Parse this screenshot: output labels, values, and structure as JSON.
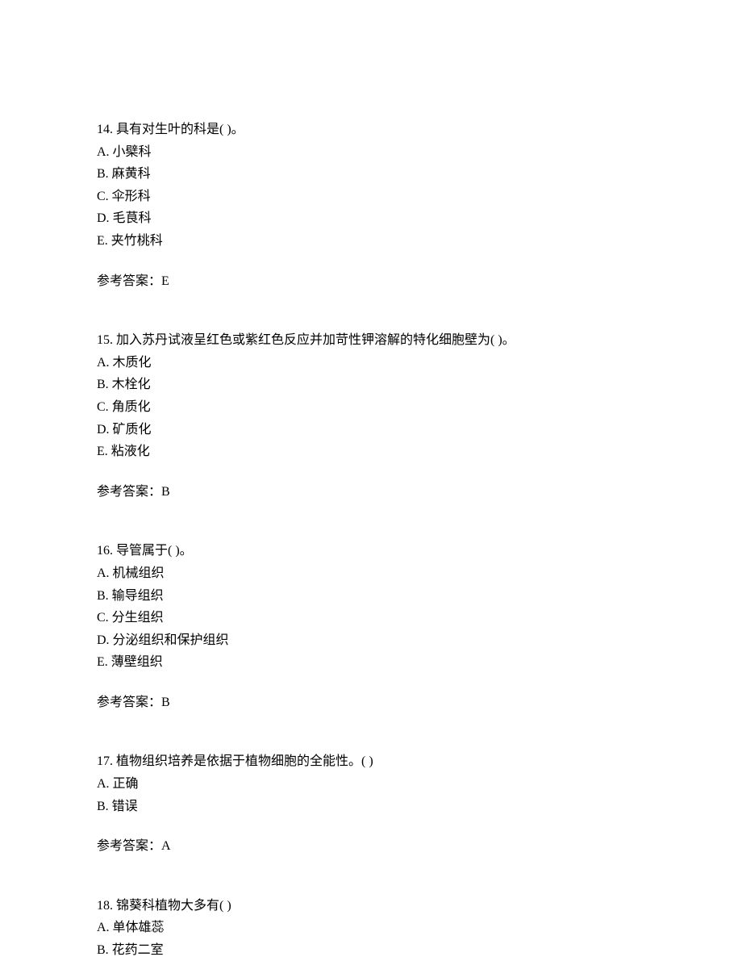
{
  "questions": [
    {
      "number": "14.",
      "stem": "具有对生叶的科是(   )。",
      "options": [
        "A. 小檗科",
        "B. 麻黄科",
        "C. 伞形科",
        "D. 毛茛科",
        "E. 夹竹桃科"
      ],
      "answer_label": "参考答案：",
      "answer_value": "E"
    },
    {
      "number": "15.",
      "stem": "加入苏丹试液呈红色或紫红色反应并加苛性钾溶解的特化细胞壁为(   )。",
      "options": [
        "A. 木质化",
        "B. 木栓化",
        "C. 角质化",
        "D. 矿质化",
        "E. 粘液化"
      ],
      "answer_label": "参考答案：",
      "answer_value": "B"
    },
    {
      "number": "16.",
      "stem": "导管属于(   )。",
      "options": [
        "A. 机械组织",
        "B. 输导组织",
        "C. 分生组织",
        "D. 分泌组织和保护组织",
        "E. 薄壁组织"
      ],
      "answer_label": "参考答案：",
      "answer_value": "B"
    },
    {
      "number": "17.",
      "stem": "植物组织培养是依据于植物细胞的全能性。(    )",
      "options": [
        "A. 正确",
        "B. 错误"
      ],
      "answer_label": "参考答案：",
      "answer_value": "A"
    },
    {
      "number": "18.",
      "stem": "锦葵科植物大多有(    )",
      "options": [
        "A. 单体雄蕊",
        "B. 花药二室"
      ],
      "answer_label": "",
      "answer_value": ""
    }
  ]
}
